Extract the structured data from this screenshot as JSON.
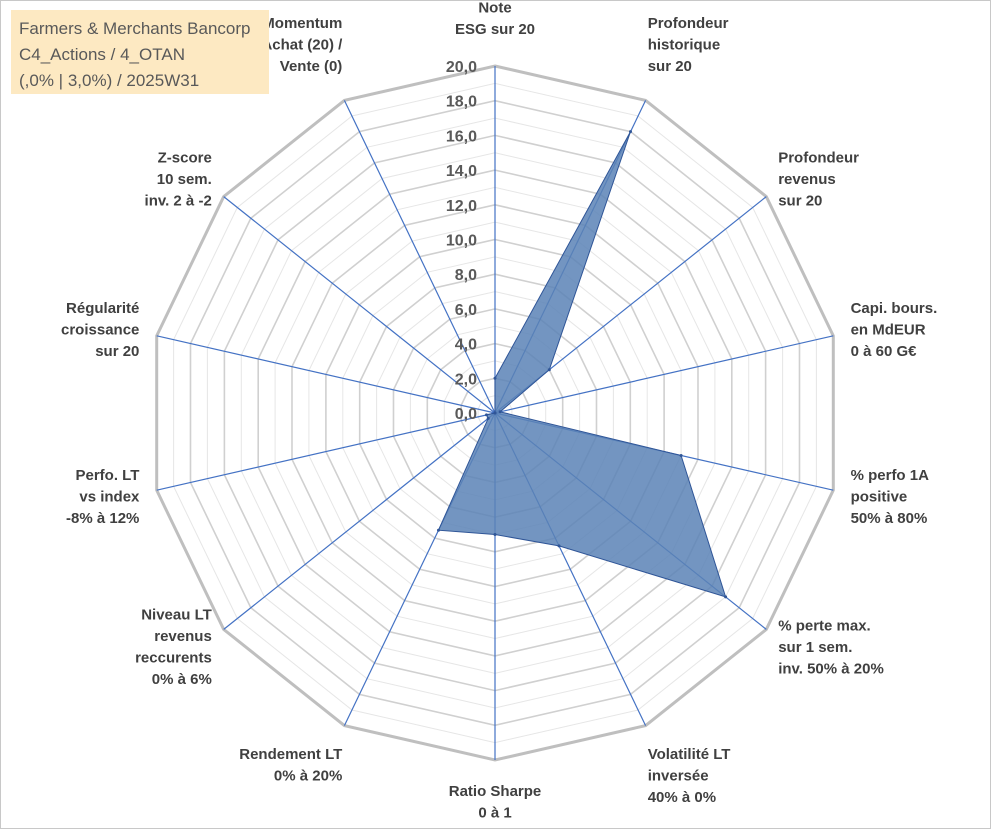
{
  "title": {
    "line1": "Farmers & Merchants Bancorp",
    "line2": "C4_Actions / 4_OTAN",
    "line3": "(,0% | 3,0%) / 2025W31"
  },
  "chart_data": {
    "type": "radar",
    "rmin": 0,
    "rmax": 20,
    "tick_labels": [
      "0,0",
      "2,0",
      "4,0",
      "6,0",
      "8,0",
      "10,0",
      "12,0",
      "14,0",
      "16,0",
      "18,0",
      "20,0"
    ],
    "axes": [
      [
        "Note",
        "ESG sur 20"
      ],
      [
        "Profondeur",
        "historique",
        "sur 20"
      ],
      [
        "Profondeur",
        "revenus",
        "sur 20"
      ],
      [
        "Capi. bours.",
        "en MdEUR",
        "0 à 60 G€"
      ],
      [
        "% perfo 1A",
        "positive",
        "50% à 80%"
      ],
      [
        "% perte max.",
        "sur 1 sem.",
        "inv. 50% à 20%"
      ],
      [
        "Volatilité LT",
        "inversée",
        "40% à 0%"
      ],
      [
        "Ratio Sharpe",
        "0 à 1"
      ],
      [
        "Rendement LT",
        "0% à 20%"
      ],
      [
        "Niveau LT",
        "revenus",
        "reccurents",
        "0% à 6%"
      ],
      [
        "Perfo. LT",
        "vs index",
        "-8% à 12%"
      ],
      [
        "Régularité",
        "croissance",
        "sur 20"
      ],
      [
        "Z-score",
        "10 sem.",
        "inv. 2 à -2"
      ],
      [
        "Momentum",
        "Achat (20) /",
        "Vente (0)"
      ]
    ],
    "series": [
      {
        "values": [
          2.0,
          18.0,
          4.0,
          0.3,
          11.0,
          17.0,
          8.5,
          7.0,
          7.5,
          0.5,
          0.5,
          0.0,
          0.0,
          0.0
        ]
      }
    ],
    "colors": {
      "fill": "#5b83b6",
      "stroke": "#2f5597",
      "spoke": "#4472c4",
      "grid_outer": "#bfbfbf",
      "grid_inner": "#d9d9d9"
    },
    "grid": true,
    "legend": "none"
  }
}
